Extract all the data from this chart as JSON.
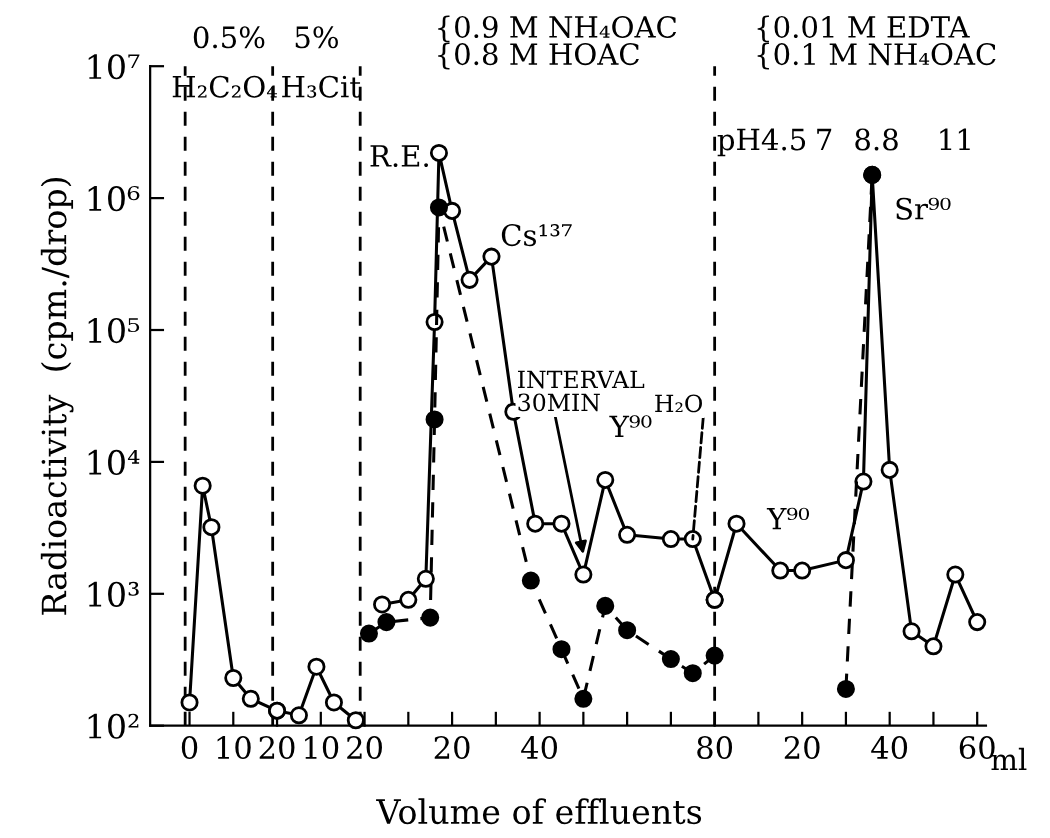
{
  "chart_data": [
    {
      "type": "line",
      "ylabel": "Radioactivity  (cpm./drop)",
      "log": "y",
      "marker": "circle",
      "xlim": [
        -9,
        20
      ],
      "ylim": [
        100,
        10000000
      ],
      "xticks": [
        0,
        10,
        20
      ],
      "yticks": [
        {
          "value": 100,
          "label": "10²"
        },
        {
          "value": 1000,
          "label": "10³"
        },
        {
          "value": 10000,
          "label": "10⁴"
        },
        {
          "value": 100000,
          "label": "10⁵"
        },
        {
          "value": 1000000,
          "label": "10⁶"
        },
        {
          "value": 10000000,
          "label": "10⁷"
        }
      ],
      "series": [
        {
          "color": "#000000",
          "line_style": "solid",
          "x": [
            0,
            3,
            5,
            10,
            14,
            20
          ],
          "values": [
            150,
            6600,
            3200,
            230,
            160,
            130
          ]
        }
      ],
      "ref_lines": [
        {
          "axis": "x",
          "value": -1,
          "line_style": "dashed",
          "color": "#000000"
        },
        {
          "axis": "x",
          "value": 19,
          "line_style": "dashed",
          "color": "#000000"
        }
      ],
      "annotations": [
        "0.5%",
        "H₂C₂O₄"
      ]
    },
    {
      "type": "line",
      "log": "y",
      "marker": "circle",
      "tick_labels": "x",
      "xlim": [
        0,
        20
      ],
      "ylim": [
        100,
        10000000
      ],
      "xticks": [
        10,
        20
      ],
      "series": [
        {
          "color": "#000000",
          "line_style": "solid",
          "x": [
            0,
            5,
            9,
            13,
            18
          ],
          "values": [
            130,
            120,
            280,
            150,
            110
          ]
        }
      ],
      "ref_lines": [
        {
          "axis": "x",
          "value": 19,
          "line_style": "dashed",
          "color": "#000000"
        }
      ],
      "annotations": [
        "5%",
        "H₃Cit"
      ]
    },
    {
      "type": "line",
      "xlabel": "Volume of effluents",
      "log": "y",
      "marker": "circle",
      "tick_labels": "x",
      "xlim": [
        0,
        80
      ],
      "ylim": [
        100,
        10000000
      ],
      "xticks": [
        {
          "value": 10,
          "label": null
        },
        20,
        {
          "value": 30,
          "label": null
        },
        40,
        {
          "value": 50,
          "label": null
        },
        {
          "value": 60,
          "label": null
        },
        {
          "value": 70,
          "label": null
        },
        80
      ],
      "series": [
        {
          "color": "#000000",
          "line_style": "solid",
          "x": [
            4,
            10,
            14,
            16,
            17,
            20,
            24,
            29,
            34,
            39,
            45,
            50,
            55,
            60,
            70,
            75,
            80
          ],
          "values": [
            830,
            900,
            1300,
            115000,
            2200000,
            800000,
            240000,
            360000,
            24000,
            3400,
            3400,
            1400,
            7300,
            2800,
            2600,
            2600,
            900
          ]
        },
        {
          "color": "#000000",
          "line_style": "dashed",
          "x": [
            1,
            5,
            15,
            16,
            17,
            38,
            45,
            50,
            55,
            60,
            70,
            75,
            80
          ],
          "values": [
            500,
            610,
            660,
            21000,
            850000,
            1260,
            380,
            160,
            810,
            530,
            320,
            250,
            340
          ]
        }
      ],
      "annotations": [
        "{0.9 M NH₄OAC\n{0.8 M HOAC",
        "R.E.",
        "Cs¹³⁷",
        {
          "text": "INTERVAL\n30MIN",
          "x": 50,
          "y": 2000
        },
        {
          "text": "H₂O",
          "x": 75,
          "y": 2600
        },
        "Y⁹⁰"
      ]
    },
    {
      "type": "line",
      "log": "y",
      "marker": "circle",
      "tick_labels": "x",
      "xlim": [
        0,
        62
      ],
      "ylim": [
        100,
        10000000
      ],
      "xticks": [
        {
          "value": 10,
          "label": null
        },
        20,
        {
          "value": 30,
          "label": null
        },
        40,
        {
          "value": 50,
          "label": null
        },
        60
      ],
      "series": [
        {
          "color": "#000000",
          "line_style": "solid",
          "x": [
            0,
            5,
            15,
            20,
            30,
            34,
            36,
            40,
            45,
            50,
            55,
            60
          ],
          "values": [
            900,
            3400,
            1500,
            1500,
            1800,
            7100,
            1500000,
            8700,
            520,
            400,
            1400,
            610
          ]
        },
        {
          "color": "#000000",
          "line_style": "dashed",
          "x": [
            30,
            36
          ],
          "values": [
            190,
            1500000
          ]
        }
      ],
      "ref_lines": [
        {
          "axis": "x",
          "value": 0,
          "line_style": "dashed",
          "color": "#000000"
        }
      ],
      "annotations": [
        "{0.01 M EDTA\n{0.1 M NH₄OAC",
        "pH4.5",
        "7",
        "8.8",
        "11",
        "Y⁹⁰",
        "Sr⁹⁰",
        "ml"
      ]
    }
  ]
}
